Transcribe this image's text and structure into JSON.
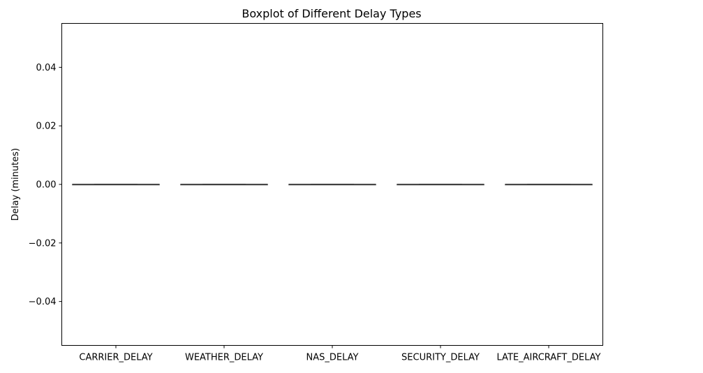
{
  "chart_data": {
    "type": "boxplot",
    "title": "Boxplot of Different Delay Types",
    "xlabel": "",
    "ylabel": "Delay (minutes)",
    "ylim": [
      -0.055,
      0.055
    ],
    "yticks": [
      0.04,
      0.02,
      0.0,
      -0.02,
      -0.04
    ],
    "ytick_labels": [
      "0.04",
      "0.02",
      "0.00",
      "−0.02",
      "−0.04"
    ],
    "categories": [
      "CARRIER_DELAY",
      "WEATHER_DELAY",
      "NAS_DELAY",
      "SECURITY_DELAY",
      "LATE_AIRCRAFT_DELAY"
    ],
    "boxes": [
      {
        "min": 0,
        "q1": 0,
        "median": 0,
        "q3": 0,
        "max": 0
      },
      {
        "min": 0,
        "q1": 0,
        "median": 0,
        "q3": 0,
        "max": 0
      },
      {
        "min": 0,
        "q1": 0,
        "median": 0,
        "q3": 0,
        "max": 0
      },
      {
        "min": 0,
        "q1": 0,
        "median": 0,
        "q3": 0,
        "max": 0
      },
      {
        "min": 0,
        "q1": 0,
        "median": 0,
        "q3": 0,
        "max": 0
      }
    ],
    "box_color": "#3d3d3d",
    "grid": false,
    "legend": false
  }
}
